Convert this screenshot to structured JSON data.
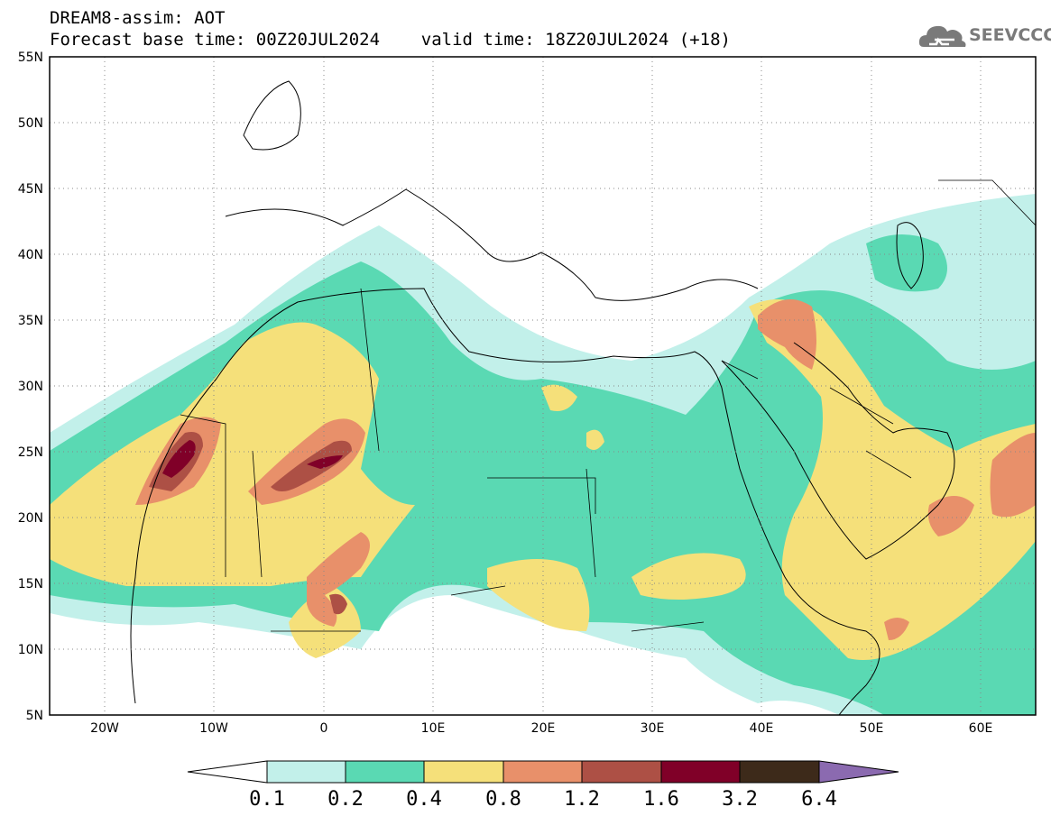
{
  "header": {
    "line1": "DREAM8-assim: AOT",
    "line2": "Forecast base time: 00Z20JUL2024    valid time: 18Z20JUL2024 (+18)"
  },
  "logo": {
    "text": "SEEVCCC",
    "icon": "cloud-icon"
  },
  "map": {
    "type": "contour-map",
    "variable": "AOT",
    "lon_range": [
      -25,
      65
    ],
    "lat_range": [
      5,
      55
    ],
    "lon_ticks": [
      "20W",
      "10W",
      "0",
      "10E",
      "20E",
      "30E",
      "40E",
      "50E",
      "60E"
    ],
    "lat_ticks": [
      "55N",
      "50N",
      "45N",
      "40N",
      "35N",
      "30N",
      "25N",
      "20N",
      "15N",
      "10N",
      "5N"
    ],
    "grid": "dotted"
  },
  "colorbar": {
    "levels": [
      "0.1",
      "0.2",
      "0.4",
      "0.8",
      "1.2",
      "1.6",
      "3.2",
      "6.4"
    ],
    "colors": [
      "#c2f0ea",
      "#5ad9b3",
      "#f5e07a",
      "#e8906a",
      "#ad5045",
      "#800028",
      "#3d2a1a",
      "#8b6ab0"
    ]
  }
}
